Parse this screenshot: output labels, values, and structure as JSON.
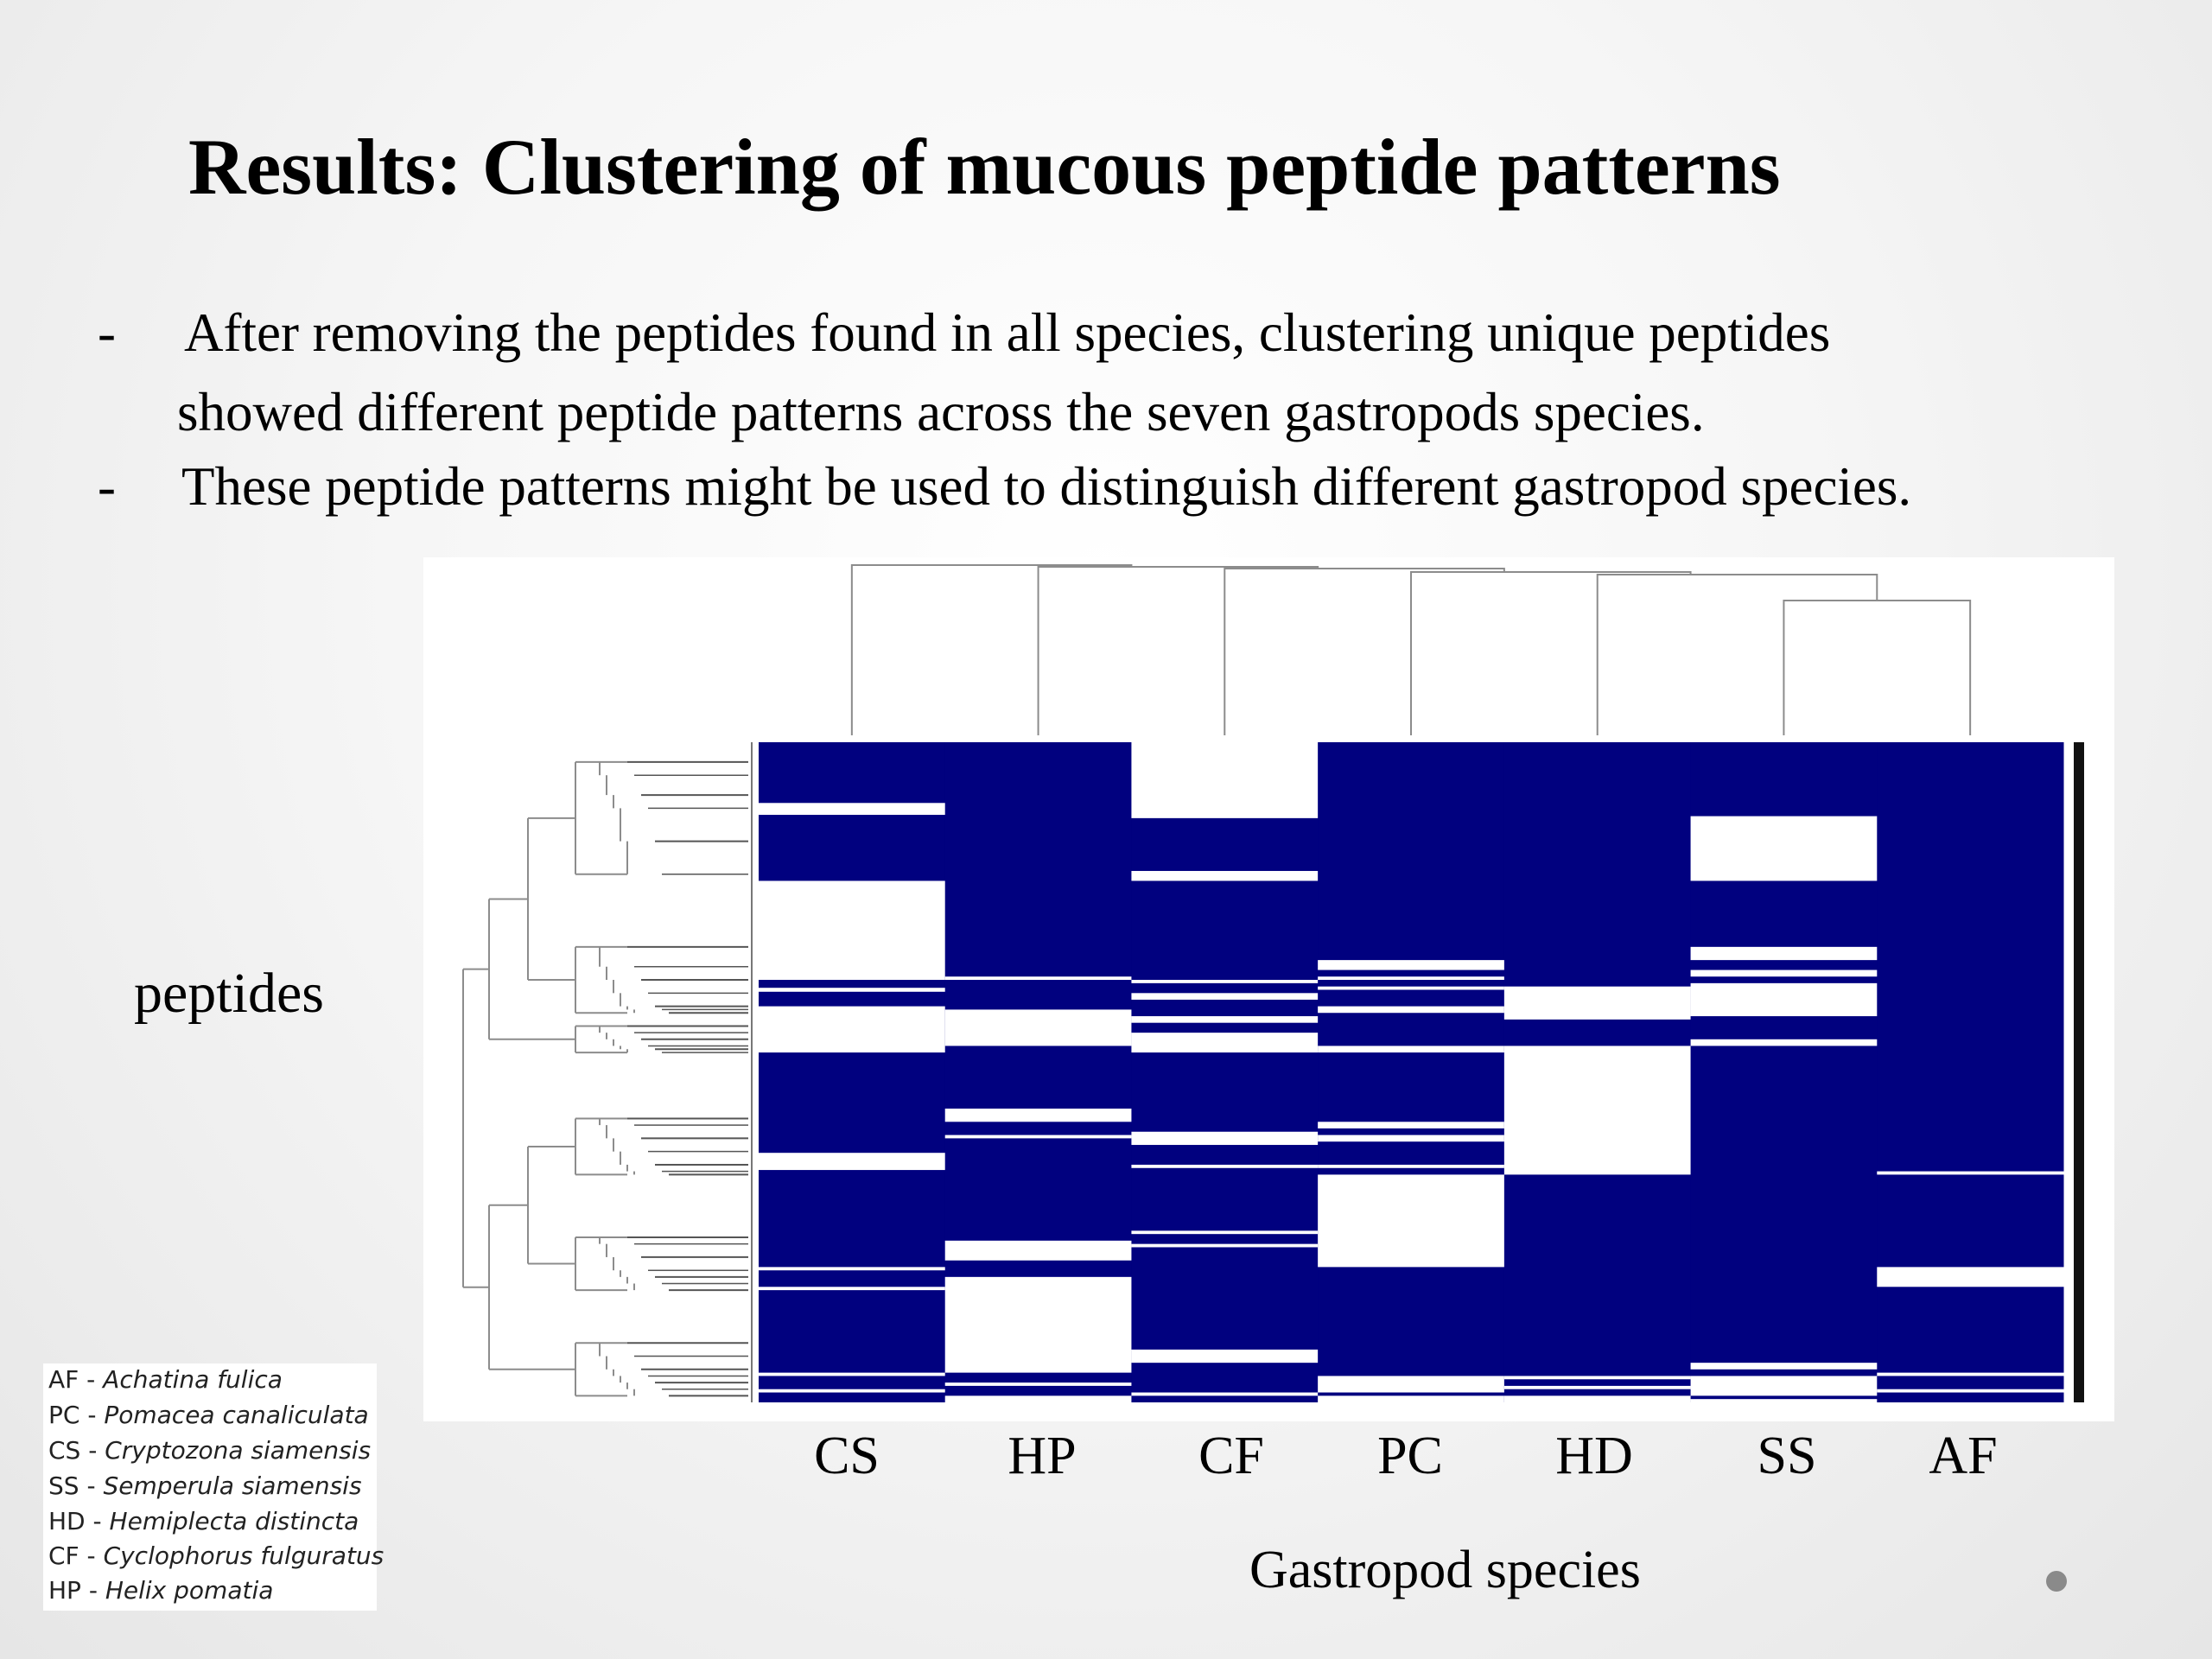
{
  "slide": {
    "title": "Results: Clustering of mucous peptide patterns",
    "bullets": [
      "After removing the peptides found in all species, clustering unique peptides",
      "showed different peptide patterns across the seven gastropods species.",
      "These peptide patterns might be used to distinguish different gastropod species."
    ],
    "bullet_marker": "-"
  },
  "legend": [
    {
      "code": "AF - ",
      "name": "Achatina fulica"
    },
    {
      "code": "PC - ",
      "name": "Pomacea canaliculata"
    },
    {
      "code": "CS - ",
      "name": "Cryptozona siamensis"
    },
    {
      "code": "SS - ",
      "name": "Semperula siamensis"
    },
    {
      "code": "HD - ",
      "name": "Hemiplecta distincta"
    },
    {
      "code": "CF - ",
      "name": "Cyclophorus fulguratus"
    },
    {
      "code": "HP - ",
      "name": "Helix pomatia"
    }
  ],
  "colors": {
    "present": "#01017f",
    "absent": "#ffffff",
    "dendrogram": "#8c8c8c"
  },
  "chart_data": {
    "type": "heatmap",
    "xlabel": "Gastropod species",
    "ylabel": "peptides",
    "columns": [
      "CS",
      "HP",
      "CF",
      "PC",
      "HD",
      "SS",
      "AF"
    ],
    "row_scale": "fraction of peptide rows from top (0) to bottom (1)",
    "value_legend": {
      "present": 1,
      "absent": 0
    },
    "absent_blocks": {
      "CS": [
        [
          0.092,
          0.11
        ],
        [
          0.21,
          0.36
        ],
        [
          0.372,
          0.378
        ],
        [
          0.4,
          0.47
        ],
        [
          0.622,
          0.648
        ],
        [
          0.795,
          0.8
        ],
        [
          0.825,
          0.83
        ],
        [
          0.955,
          0.96
        ],
        [
          0.98,
          0.985
        ]
      ],
      "HP": [
        [
          0.355,
          0.36
        ],
        [
          0.405,
          0.46
        ],
        [
          0.555,
          0.575
        ],
        [
          0.595,
          0.6
        ],
        [
          0.755,
          0.785
        ],
        [
          0.81,
          0.955
        ],
        [
          0.97,
          0.975
        ],
        [
          0.99,
          1.0
        ]
      ],
      "CF": [
        [
          0.0,
          0.115
        ],
        [
          0.195,
          0.21
        ],
        [
          0.36,
          0.365
        ],
        [
          0.38,
          0.39
        ],
        [
          0.415,
          0.425
        ],
        [
          0.44,
          0.47
        ],
        [
          0.59,
          0.61
        ],
        [
          0.64,
          0.645
        ],
        [
          0.74,
          0.745
        ],
        [
          0.76,
          0.765
        ],
        [
          0.92,
          0.94
        ],
        [
          0.985,
          0.99
        ]
      ],
      "PC": [
        [
          0.33,
          0.345
        ],
        [
          0.355,
          0.36
        ],
        [
          0.37,
          0.375
        ],
        [
          0.4,
          0.41
        ],
        [
          0.46,
          0.47
        ],
        [
          0.575,
          0.585
        ],
        [
          0.595,
          0.605
        ],
        [
          0.64,
          0.645
        ],
        [
          0.655,
          0.795
        ],
        [
          0.96,
          0.985
        ],
        [
          0.99,
          1.0
        ]
      ],
      "HD": [
        [
          0.37,
          0.42
        ],
        [
          0.46,
          0.655
        ],
        [
          0.96,
          0.965
        ],
        [
          0.975,
          0.98
        ],
        [
          0.99,
          1.0
        ]
      ],
      "SS": [
        [
          0.112,
          0.21
        ],
        [
          0.31,
          0.33
        ],
        [
          0.345,
          0.355
        ],
        [
          0.365,
          0.415
        ],
        [
          0.45,
          0.46
        ],
        [
          0.94,
          0.95
        ],
        [
          0.96,
          0.99
        ],
        [
          0.995,
          1.0
        ]
      ],
      "AF": [
        [
          0.65,
          0.655
        ],
        [
          0.795,
          0.825
        ],
        [
          0.955,
          0.96
        ],
        [
          0.98,
          0.985
        ]
      ]
    }
  }
}
